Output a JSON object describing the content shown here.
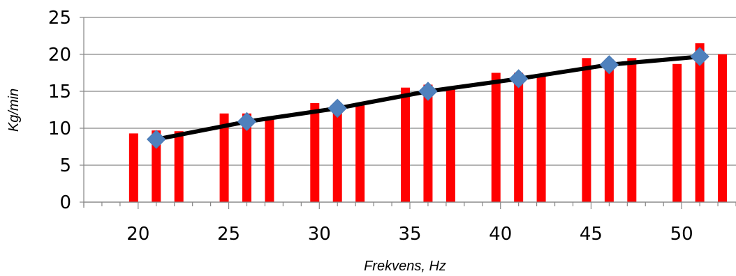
{
  "chart_data": {
    "type": "bar",
    "xlabel": "Frekvens, Hz",
    "ylabel": "Kg/min",
    "ylim": [
      0,
      25
    ],
    "yticks": [
      "0",
      "5",
      "10",
      "15",
      "20",
      "25"
    ],
    "xlim": [
      17,
      53
    ],
    "xticks": [
      "20",
      "25",
      "30",
      "35",
      "40",
      "45",
      "50"
    ],
    "grid": "horizontal",
    "colors": {
      "bars": "#ff0000",
      "line": "#000000",
      "markers": "#4f81bd"
    },
    "bars": {
      "x": [
        19.75,
        21.0,
        22.25,
        24.75,
        26.0,
        27.25,
        29.75,
        31.0,
        32.25,
        34.75,
        36.0,
        37.25,
        39.75,
        41.0,
        42.25,
        44.75,
        46.0,
        47.25,
        49.75,
        51.0,
        52.25
      ],
      "values": [
        9.3,
        9.7,
        9.6,
        12.0,
        12.0,
        11.3,
        13.4,
        13.0,
        13.3,
        15.5,
        15.9,
        15.3,
        17.5,
        17.5,
        17.0,
        19.5,
        19.3,
        19.5,
        18.7,
        21.5,
        20.0
      ]
    },
    "line": {
      "x": [
        21,
        26,
        31,
        36,
        41,
        46,
        51
      ],
      "values": [
        8.5,
        10.9,
        12.7,
        15.0,
        16.7,
        18.6,
        19.7
      ]
    }
  }
}
